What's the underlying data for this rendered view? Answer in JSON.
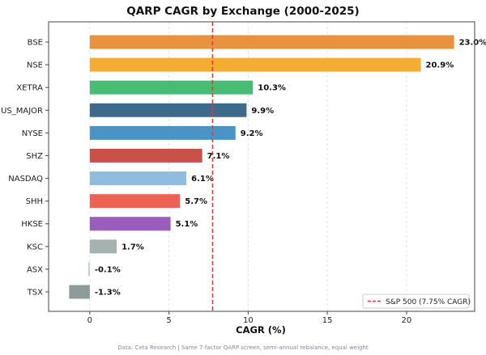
{
  "chart_data": {
    "type": "bar",
    "orientation": "horizontal",
    "title": "QARP CAGR by Exchange (2000-2025)",
    "xlabel": "CAGR (%)",
    "ylabel": "",
    "xlim": [
      -2.6,
      24.3
    ],
    "xticks": [
      0,
      5,
      10,
      15,
      20
    ],
    "grid": "x-dashed",
    "categories": [
      "BSE",
      "NSE",
      "XETRA",
      "US_MAJOR",
      "NYSE",
      "SHZ",
      "NASDAQ",
      "SHH",
      "HKSE",
      "KSC",
      "ASX",
      "TSX"
    ],
    "values": [
      23.0,
      20.9,
      10.3,
      9.9,
      9.2,
      7.1,
      6.1,
      5.7,
      5.1,
      1.7,
      -0.1,
      -1.3
    ],
    "data_labels": [
      "23.0%",
      "20.9%",
      "10.3%",
      "9.9%",
      "9.2%",
      "7.1%",
      "6.1%",
      "5.7%",
      "5.1%",
      "1.7%",
      "-0.1%",
      "-1.3%"
    ],
    "colors": [
      "#e8913f",
      "#f4ac33",
      "#47bc74",
      "#3d6a8a",
      "#4a93c6",
      "#c9514a",
      "#90bddf",
      "#ec6356",
      "#9b5dbd",
      "#a6b2b2",
      "#c3cbcc",
      "#8f9a9b"
    ],
    "reference_line": {
      "value": 7.75,
      "color": "#e53935",
      "label": "S&P 500 (7.75% CAGR)"
    },
    "legend_placement": "bottom-right",
    "footnote": "Data: Ceta Research | Same 7-factor QARP screen, semi-annual rebalance, equal weight"
  }
}
